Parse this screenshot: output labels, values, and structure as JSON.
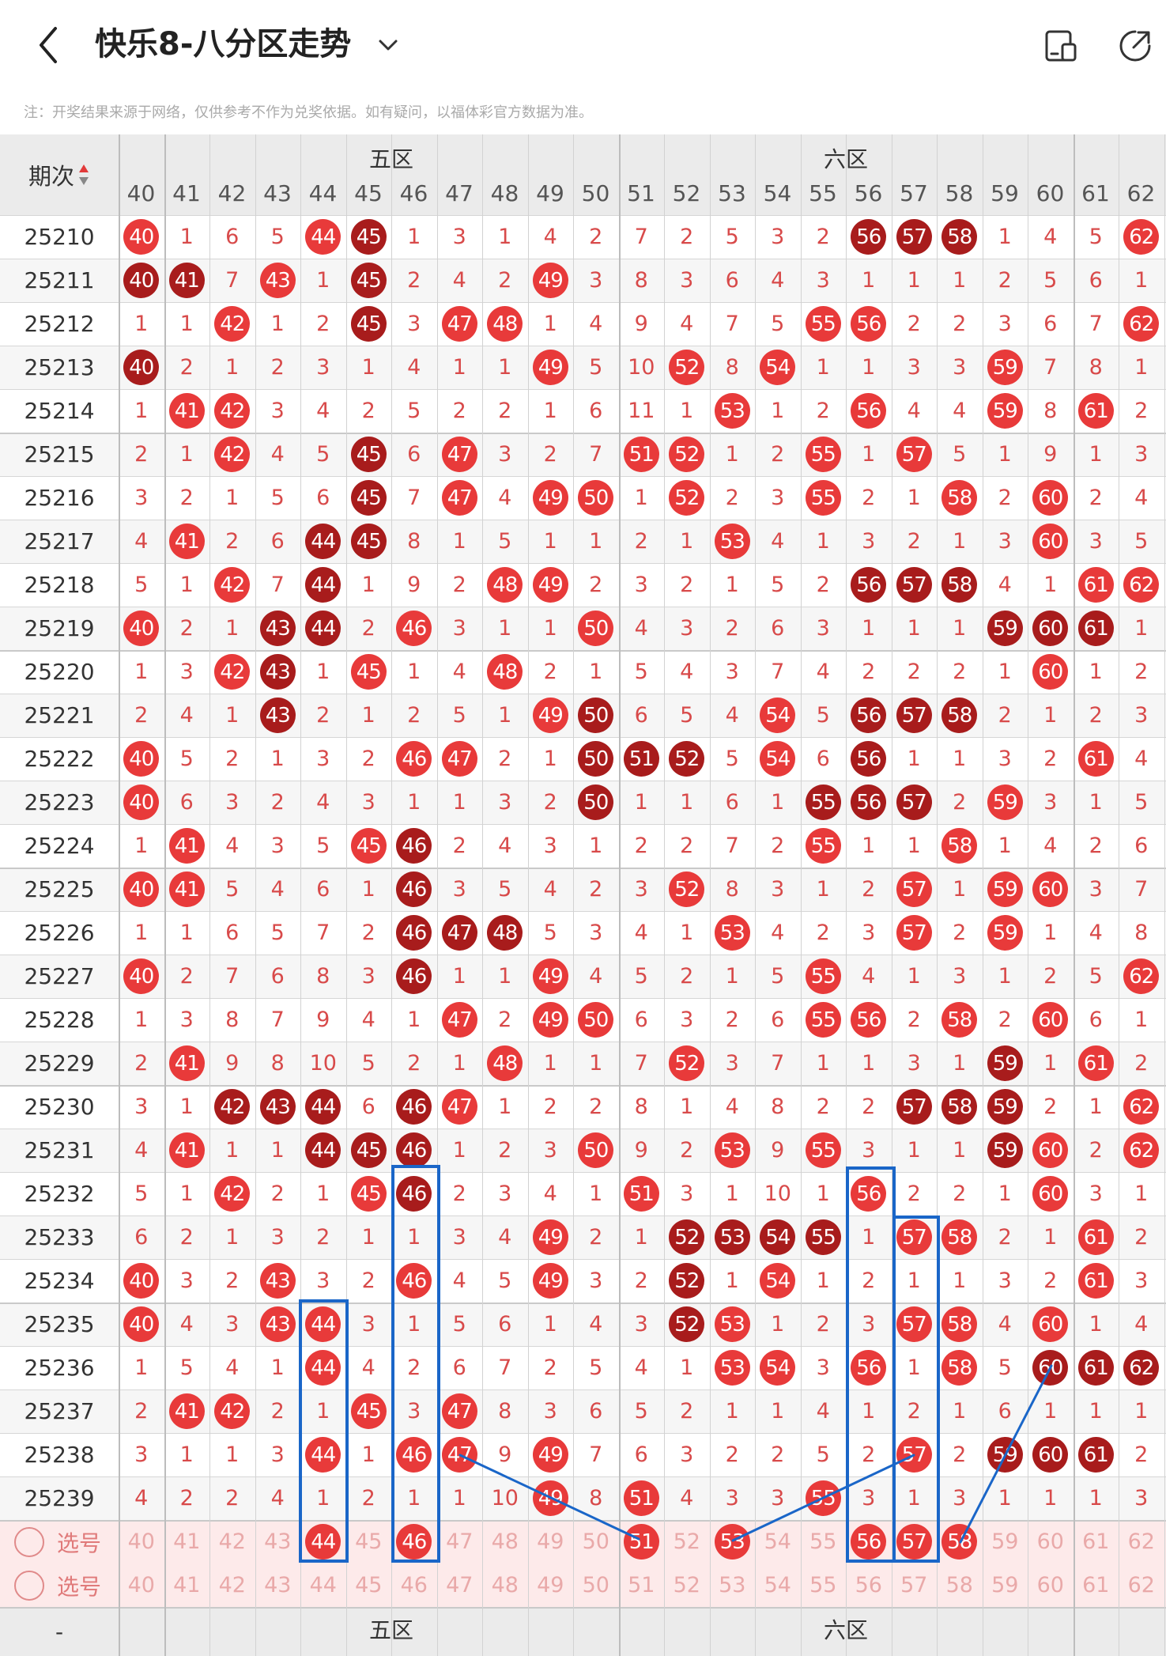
{
  "header": {
    "title": "快乐8-八分区走势",
    "note": "注：开奖结果来源于网络，仅供参考不作为兑奖依据。如有疑问，以福体彩官方数据为准。"
  },
  "icons": {
    "back": "back-arrow-icon",
    "dropdown": "chevron-down-icon",
    "layout": "layout-toggle-icon",
    "share": "share-icon"
  },
  "colors": {
    "accent": "#e83a3a",
    "dark_ball": "#a81c1c",
    "number_text": "#d84a4a",
    "select_row": "#fde9e9",
    "box": "#1a66c8"
  },
  "table": {
    "period_header": "期次",
    "zones": [
      {
        "name": "五区",
        "from": 41,
        "to": 50
      },
      {
        "name": "六区",
        "from": 51,
        "to": 60
      }
    ],
    "columns": [
      40,
      41,
      42,
      43,
      44,
      45,
      46,
      47,
      48,
      49,
      50,
      51,
      52,
      53,
      54,
      55,
      56,
      57,
      58,
      59,
      60,
      61,
      62
    ],
    "rows": [
      {
        "period": "25210",
        "cells": [
          "R40",
          "1",
          "6",
          "5",
          "R44",
          "D45",
          "1",
          "3",
          "1",
          "4",
          "2",
          "7",
          "2",
          "5",
          "3",
          "2",
          "D56",
          "D57",
          "D58",
          "1",
          "4",
          "5",
          "R62"
        ]
      },
      {
        "period": "25211",
        "cells": [
          "D40",
          "D41",
          "7",
          "R43",
          "1",
          "D45",
          "2",
          "4",
          "2",
          "R49",
          "3",
          "8",
          "3",
          "6",
          "4",
          "3",
          "1",
          "1",
          "1",
          "2",
          "5",
          "6",
          "1"
        ]
      },
      {
        "period": "25212",
        "cells": [
          "1",
          "1",
          "R42",
          "1",
          "2",
          "D45",
          "3",
          "R47",
          "R48",
          "1",
          "4",
          "9",
          "4",
          "7",
          "5",
          "R55",
          "R56",
          "2",
          "2",
          "3",
          "6",
          "7",
          "R62"
        ]
      },
      {
        "period": "25213",
        "cells": [
          "D40",
          "2",
          "1",
          "2",
          "3",
          "1",
          "4",
          "1",
          "1",
          "R49",
          "5",
          "10",
          "R52",
          "8",
          "R54",
          "1",
          "1",
          "3",
          "3",
          "R59",
          "7",
          "8",
          "1"
        ]
      },
      {
        "period": "25214",
        "cells": [
          "1",
          "R41",
          "R42",
          "3",
          "4",
          "2",
          "5",
          "2",
          "2",
          "1",
          "6",
          "11",
          "1",
          "R53",
          "1",
          "2",
          "R56",
          "4",
          "4",
          "R59",
          "8",
          "R61",
          "2"
        ]
      },
      {
        "period": "25215",
        "cells": [
          "2",
          "1",
          "R42",
          "4",
          "5",
          "D45",
          "6",
          "R47",
          "3",
          "2",
          "7",
          "R51",
          "R52",
          "1",
          "2",
          "R55",
          "1",
          "R57",
          "5",
          "1",
          "9",
          "1",
          "3"
        ]
      },
      {
        "period": "25216",
        "cells": [
          "3",
          "2",
          "1",
          "5",
          "6",
          "D45",
          "7",
          "R47",
          "4",
          "R49",
          "R50",
          "1",
          "R52",
          "2",
          "3",
          "R55",
          "2",
          "1",
          "R58",
          "2",
          "R60",
          "2",
          "4"
        ]
      },
      {
        "period": "25217",
        "cells": [
          "4",
          "R41",
          "2",
          "6",
          "D44",
          "D45",
          "8",
          "1",
          "5",
          "1",
          "1",
          "2",
          "1",
          "R53",
          "4",
          "1",
          "3",
          "2",
          "1",
          "3",
          "R60",
          "3",
          "5"
        ]
      },
      {
        "period": "25218",
        "cells": [
          "5",
          "1",
          "R42",
          "7",
          "D44",
          "1",
          "9",
          "2",
          "R48",
          "R49",
          "2",
          "3",
          "2",
          "1",
          "5",
          "2",
          "D56",
          "D57",
          "D58",
          "4",
          "1",
          "R61",
          "R62"
        ]
      },
      {
        "period": "25219",
        "cells": [
          "R40",
          "2",
          "1",
          "D43",
          "D44",
          "2",
          "R46",
          "3",
          "1",
          "1",
          "R50",
          "4",
          "3",
          "2",
          "6",
          "3",
          "1",
          "1",
          "1",
          "D59",
          "D60",
          "D61",
          "1"
        ]
      },
      {
        "period": "25220",
        "cells": [
          "1",
          "3",
          "R42",
          "D43",
          "1",
          "R45",
          "1",
          "4",
          "R48",
          "2",
          "1",
          "5",
          "4",
          "3",
          "7",
          "4",
          "2",
          "2",
          "2",
          "1",
          "R60",
          "1",
          "2"
        ]
      },
      {
        "period": "25221",
        "cells": [
          "2",
          "4",
          "1",
          "D43",
          "2",
          "1",
          "2",
          "5",
          "1",
          "R49",
          "D50",
          "6",
          "5",
          "4",
          "R54",
          "5",
          "D56",
          "D57",
          "D58",
          "2",
          "1",
          "2",
          "3"
        ]
      },
      {
        "period": "25222",
        "cells": [
          "R40",
          "5",
          "2",
          "1",
          "3",
          "2",
          "R46",
          "R47",
          "2",
          "1",
          "D50",
          "D51",
          "D52",
          "5",
          "R54",
          "6",
          "D56",
          "1",
          "1",
          "3",
          "2",
          "R61",
          "4"
        ]
      },
      {
        "period": "25223",
        "cells": [
          "R40",
          "6",
          "3",
          "2",
          "4",
          "3",
          "1",
          "1",
          "3",
          "2",
          "D50",
          "1",
          "1",
          "6",
          "1",
          "D55",
          "D56",
          "D57",
          "2",
          "R59",
          "3",
          "1",
          "5"
        ]
      },
      {
        "period": "25224",
        "cells": [
          "1",
          "R41",
          "4",
          "3",
          "5",
          "R45",
          "D46",
          "2",
          "4",
          "3",
          "1",
          "2",
          "2",
          "7",
          "2",
          "R55",
          "1",
          "1",
          "R58",
          "1",
          "4",
          "2",
          "6"
        ]
      },
      {
        "period": "25225",
        "cells": [
          "R40",
          "R41",
          "5",
          "4",
          "6",
          "1",
          "D46",
          "3",
          "5",
          "4",
          "2",
          "3",
          "R52",
          "8",
          "3",
          "1",
          "2",
          "R57",
          "1",
          "R59",
          "R60",
          "3",
          "7"
        ]
      },
      {
        "period": "25226",
        "cells": [
          "1",
          "1",
          "6",
          "5",
          "7",
          "2",
          "D46",
          "D47",
          "D48",
          "5",
          "3",
          "4",
          "1",
          "R53",
          "4",
          "2",
          "3",
          "R57",
          "2",
          "R59",
          "1",
          "4",
          "8"
        ]
      },
      {
        "period": "25227",
        "cells": [
          "R40",
          "2",
          "7",
          "6",
          "8",
          "3",
          "D46",
          "1",
          "1",
          "R49",
          "4",
          "5",
          "2",
          "1",
          "5",
          "R55",
          "4",
          "1",
          "3",
          "1",
          "2",
          "5",
          "R62"
        ]
      },
      {
        "period": "25228",
        "cells": [
          "1",
          "3",
          "8",
          "7",
          "9",
          "4",
          "1",
          "R47",
          "2",
          "R49",
          "R50",
          "6",
          "3",
          "2",
          "6",
          "R55",
          "R56",
          "2",
          "R58",
          "2",
          "R60",
          "6",
          "1"
        ]
      },
      {
        "period": "25229",
        "cells": [
          "2",
          "R41",
          "9",
          "8",
          "10",
          "5",
          "2",
          "1",
          "R48",
          "1",
          "1",
          "7",
          "R52",
          "3",
          "7",
          "1",
          "1",
          "3",
          "1",
          "D59",
          "1",
          "R61",
          "2"
        ]
      },
      {
        "period": "25230",
        "cells": [
          "3",
          "1",
          "D42",
          "D43",
          "D44",
          "6",
          "D46",
          "R47",
          "1",
          "2",
          "2",
          "8",
          "1",
          "4",
          "8",
          "2",
          "2",
          "D57",
          "D58",
          "D59",
          "2",
          "1",
          "R62"
        ]
      },
      {
        "period": "25231",
        "cells": [
          "4",
          "R41",
          "1",
          "1",
          "D44",
          "D45",
          "D46",
          "1",
          "2",
          "3",
          "R50",
          "9",
          "2",
          "R53",
          "9",
          "R55",
          "3",
          "1",
          "1",
          "D59",
          "R60",
          "2",
          "R62"
        ]
      },
      {
        "period": "25232",
        "cells": [
          "5",
          "1",
          "R42",
          "2",
          "1",
          "R45",
          "D46",
          "2",
          "3",
          "4",
          "1",
          "R51",
          "3",
          "1",
          "10",
          "1",
          "R56",
          "2",
          "2",
          "1",
          "R60",
          "3",
          "1"
        ]
      },
      {
        "period": "25233",
        "cells": [
          "6",
          "2",
          "1",
          "3",
          "2",
          "1",
          "1",
          "3",
          "4",
          "R49",
          "2",
          "1",
          "D52",
          "D53",
          "D54",
          "D55",
          "1",
          "R57",
          "R58",
          "2",
          "1",
          "R61",
          "2"
        ]
      },
      {
        "period": "25234",
        "cells": [
          "R40",
          "3",
          "2",
          "R43",
          "3",
          "2",
          "R46",
          "4",
          "5",
          "R49",
          "3",
          "2",
          "D52",
          "1",
          "R54",
          "1",
          "2",
          "1",
          "1",
          "3",
          "2",
          "R61",
          "3"
        ]
      },
      {
        "period": "25235",
        "cells": [
          "R40",
          "4",
          "3",
          "R43",
          "R44",
          "3",
          "1",
          "5",
          "6",
          "1",
          "4",
          "3",
          "D52",
          "R53",
          "1",
          "2",
          "3",
          "R57",
          "R58",
          "4",
          "R60",
          "1",
          "4"
        ]
      },
      {
        "period": "25236",
        "cells": [
          "1",
          "5",
          "4",
          "1",
          "R44",
          "4",
          "2",
          "6",
          "7",
          "2",
          "5",
          "4",
          "1",
          "R53",
          "R54",
          "3",
          "R56",
          "1",
          "R58",
          "5",
          "D60",
          "D61",
          "D62"
        ]
      },
      {
        "period": "25237",
        "cells": [
          "2",
          "R41",
          "R42",
          "2",
          "1",
          "R45",
          "3",
          "R47",
          "8",
          "3",
          "6",
          "5",
          "2",
          "1",
          "1",
          "4",
          "1",
          "2",
          "1",
          "6",
          "1",
          "1",
          "1"
        ]
      },
      {
        "period": "25238",
        "cells": [
          "3",
          "1",
          "1",
          "3",
          "R44",
          "1",
          "R46",
          "R47",
          "9",
          "R49",
          "7",
          "6",
          "3",
          "2",
          "2",
          "5",
          "2",
          "R57",
          "2",
          "D59",
          "D60",
          "D61",
          "2"
        ]
      },
      {
        "period": "25239",
        "cells": [
          "4",
          "2",
          "2",
          "4",
          "1",
          "2",
          "1",
          "1",
          "10",
          "R49",
          "8",
          "R51",
          "4",
          "3",
          "3",
          "R55",
          "3",
          "1",
          "3",
          "1",
          "1",
          "1",
          "3"
        ]
      }
    ],
    "select_label": "选号",
    "selection_row_1": [
      "40",
      "41",
      "42",
      "43",
      "R44",
      "45",
      "R46",
      "47",
      "48",
      "49",
      "50",
      "R51",
      "52",
      "R53",
      "54",
      "55",
      "R56",
      "R57",
      "R58",
      "59",
      "60",
      "61",
      "62"
    ],
    "selection_row_2": [
      "40",
      "41",
      "42",
      "43",
      "44",
      "45",
      "46",
      "47",
      "48",
      "49",
      "50",
      "51",
      "52",
      "53",
      "54",
      "55",
      "56",
      "57",
      "58",
      "59",
      "60",
      "61",
      "62"
    ],
    "footer_period": "-"
  }
}
